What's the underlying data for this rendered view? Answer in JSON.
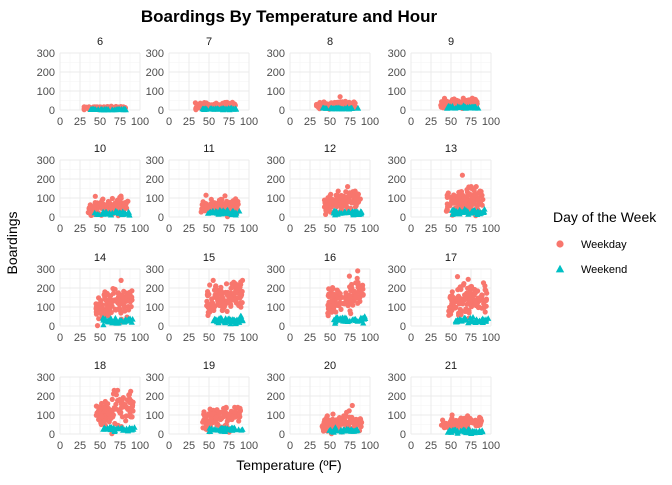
{
  "chart_data": {
    "type": "scatter",
    "title": "Boardings By Temperature and Hour",
    "xlabel": "Temperature (ºF)",
    "ylabel": "Boardings",
    "xlim": [
      0,
      100
    ],
    "ylim": [
      0,
      300
    ],
    "x_ticks": [
      "0",
      "25",
      "50",
      "75",
      "100"
    ],
    "y_ticks": [
      "0",
      "100",
      "200",
      "300"
    ],
    "grid": true,
    "facet_by": "hour",
    "legend": {
      "title": "Day of the Week",
      "placement": "right",
      "entries": [
        {
          "name": "Weekday",
          "color": "#F8766D",
          "shape": "circle"
        },
        {
          "name": "Weekend",
          "color": "#00BFC4",
          "shape": "triangle"
        }
      ]
    },
    "panels": [
      {
        "label": "6",
        "temp_range": [
          30,
          82
        ],
        "weekday": {
          "center": 10,
          "spread": 4,
          "max": 20
        },
        "weekend": {
          "center": 3,
          "spread": 2,
          "max": 8
        }
      },
      {
        "label": "7",
        "temp_range": [
          33,
          83
        ],
        "weekday": {
          "center": 22,
          "spread": 7,
          "max": 40
        },
        "weekend": {
          "center": 6,
          "spread": 3,
          "max": 12
        }
      },
      {
        "label": "8",
        "temp_range": [
          33,
          83
        ],
        "weekday": {
          "center": 25,
          "spread": 8,
          "max": 70
        },
        "weekend": {
          "center": 9,
          "spread": 4,
          "max": 18
        }
      },
      {
        "label": "9",
        "temp_range": [
          37,
          83
        ],
        "weekday": {
          "center": 35,
          "spread": 10,
          "max": 62
        },
        "weekend": {
          "center": 15,
          "spread": 5,
          "max": 28
        }
      },
      {
        "label": "10",
        "temp_range": [
          35,
          85
        ],
        "weekday": {
          "center": 50,
          "spread": 20,
          "max": 110
        },
        "weekend": {
          "center": 20,
          "spread": 7,
          "max": 40
        }
      },
      {
        "label": "11",
        "temp_range": [
          40,
          87
        ],
        "weekday": {
          "center": 55,
          "spread": 22,
          "max": 115
        },
        "weekend": {
          "center": 25,
          "spread": 8,
          "max": 45
        }
      },
      {
        "label": "12",
        "temp_range": [
          43,
          88
        ],
        "weekday": {
          "center": 75,
          "spread": 28,
          "max": 160
        },
        "weekend": {
          "center": 22,
          "spread": 8,
          "max": 45
        }
      },
      {
        "label": "13",
        "temp_range": [
          43,
          90
        ],
        "weekday": {
          "center": 80,
          "spread": 32,
          "max": 220
        },
        "weekend": {
          "center": 28,
          "spread": 9,
          "max": 55
        }
      },
      {
        "label": "14",
        "temp_range": [
          45,
          90
        ],
        "weekday": {
          "center": 110,
          "spread": 38,
          "max": 240
        },
        "weekend": {
          "center": 30,
          "spread": 10,
          "max": 60
        }
      },
      {
        "label": "15",
        "temp_range": [
          47,
          92
        ],
        "weekday": {
          "center": 140,
          "spread": 40,
          "max": 240
        },
        "weekend": {
          "center": 32,
          "spread": 12,
          "max": 80
        }
      },
      {
        "label": "16",
        "temp_range": [
          47,
          92
        ],
        "weekday": {
          "center": 140,
          "spread": 42,
          "max": 290
        },
        "weekend": {
          "center": 35,
          "spread": 12,
          "max": 70
        }
      },
      {
        "label": "17",
        "temp_range": [
          47,
          95
        ],
        "weekday": {
          "center": 130,
          "spread": 45,
          "max": 260
        },
        "weekend": {
          "center": 30,
          "spread": 11,
          "max": 60
        }
      },
      {
        "label": "18",
        "temp_range": [
          45,
          92
        ],
        "weekday": {
          "center": 110,
          "spread": 38,
          "max": 230
        },
        "weekend": {
          "center": 28,
          "spread": 10,
          "max": 50
        }
      },
      {
        "label": "19",
        "temp_range": [
          42,
          90
        ],
        "weekday": {
          "center": 85,
          "spread": 25,
          "max": 140
        },
        "weekend": {
          "center": 25,
          "spread": 9,
          "max": 45
        }
      },
      {
        "label": "20",
        "temp_range": [
          40,
          90
        ],
        "weekday": {
          "center": 60,
          "spread": 20,
          "max": 150
        },
        "weekend": {
          "center": 20,
          "spread": 8,
          "max": 40
        }
      },
      {
        "label": "21",
        "temp_range": [
          38,
          88
        ],
        "weekday": {
          "center": 55,
          "spread": 15,
          "max": 100
        },
        "weekend": {
          "center": 15,
          "spread": 6,
          "max": 30
        }
      }
    ]
  }
}
